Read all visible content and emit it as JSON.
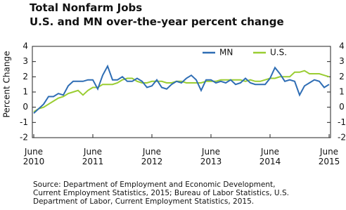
{
  "chart_data": {
    "type": "line",
    "title": "Total Nonfarm Jobs",
    "subtitle": "U.S. and MN over-the-year percent change",
    "y_label": "Percent Change",
    "categories": [
      "June 2010",
      null,
      null,
      null,
      null,
      null,
      null,
      null,
      null,
      null,
      null,
      null,
      "June 2011",
      null,
      null,
      null,
      null,
      null,
      null,
      null,
      null,
      null,
      null,
      null,
      "June 2012",
      null,
      null,
      null,
      null,
      null,
      null,
      null,
      null,
      null,
      null,
      null,
      "June 2013",
      null,
      null,
      null,
      null,
      null,
      null,
      null,
      null,
      null,
      null,
      null,
      "June 2014",
      null,
      null,
      null,
      null,
      null,
      null,
      null,
      null,
      null,
      null,
      null,
      "June 2015"
    ],
    "series": [
      {
        "name": "MN",
        "color": "#2e6db4",
        "values": [
          -0.4,
          -0.1,
          0.2,
          0.7,
          0.7,
          0.9,
          0.8,
          1.4,
          1.7,
          1.7,
          1.7,
          1.8,
          1.8,
          1.2,
          2.1,
          2.7,
          1.8,
          1.8,
          2.0,
          1.7,
          1.7,
          1.9,
          1.7,
          1.3,
          1.4,
          1.8,
          1.3,
          1.2,
          1.5,
          1.7,
          1.6,
          1.9,
          2.1,
          1.8,
          1.1,
          1.8,
          1.8,
          1.6,
          1.7,
          1.6,
          1.8,
          1.5,
          1.6,
          1.9,
          1.6,
          1.5,
          1.5,
          1.5,
          1.9,
          2.6,
          2.2,
          1.7,
          1.8,
          1.7,
          0.8,
          1.4,
          1.6,
          1.8,
          1.7,
          1.3,
          1.5
        ]
      },
      {
        "name": "U.S.",
        "color": "#9acd32",
        "values": [
          -0.3,
          -0.1,
          0.0,
          0.2,
          0.4,
          0.6,
          0.7,
          0.9,
          1.0,
          1.1,
          0.8,
          1.1,
          1.3,
          1.3,
          1.5,
          1.5,
          1.5,
          1.6,
          1.8,
          1.9,
          1.9,
          1.7,
          1.6,
          1.6,
          1.7,
          1.7,
          1.7,
          1.6,
          1.6,
          1.7,
          1.7,
          1.6,
          1.6,
          1.6,
          1.6,
          1.7,
          1.7,
          1.7,
          1.8,
          1.8,
          1.8,
          1.8,
          1.8,
          1.7,
          1.8,
          1.7,
          1.7,
          1.8,
          1.9,
          1.9,
          2.0,
          2.0,
          2.0,
          2.3,
          2.3,
          2.4,
          2.2,
          2.2,
          2.2,
          2.1,
          2.0
        ]
      }
    ],
    "ylim": [
      -2,
      4
    ],
    "yticks": [
      4,
      3,
      2,
      1,
      0,
      -1,
      -2
    ],
    "y2lim": [
      -2,
      4
    ],
    "y2ticks": [
      4,
      3,
      2,
      1,
      0,
      -1,
      -2
    ],
    "legend": "top-right",
    "source": [
      "Source: Department of Employment and Economic Development,",
      "Current Employment Statistics, 2015; Bureau of Labor Statistics, U.S.",
      "Department of Labor, Current Employment Statistics, 2015."
    ]
  }
}
